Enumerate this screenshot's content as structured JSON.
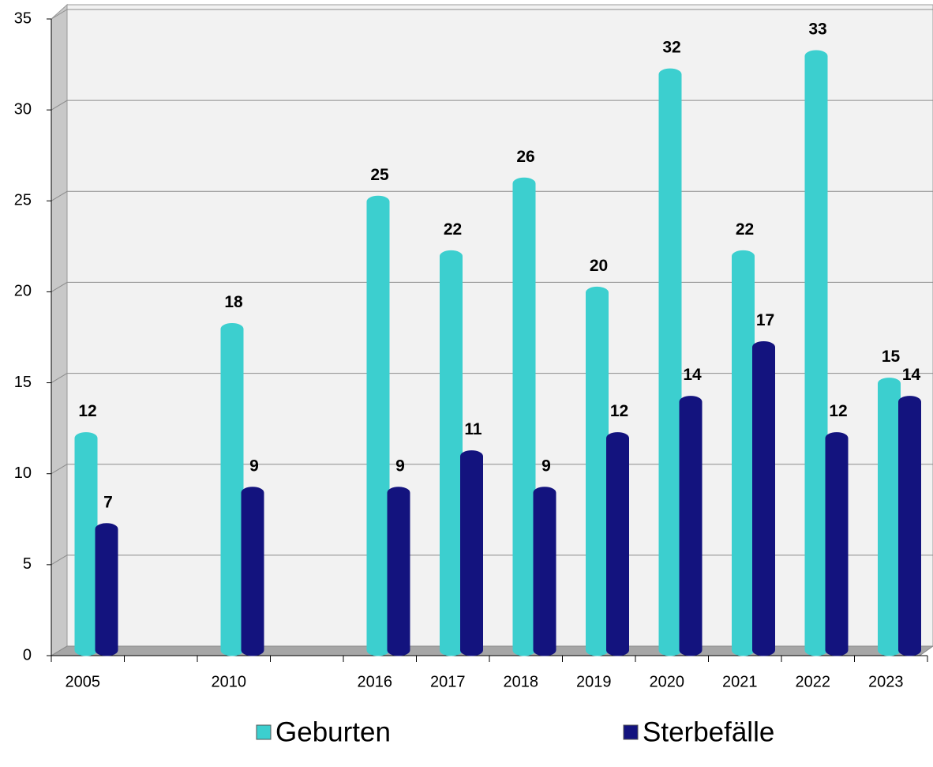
{
  "chart_data": {
    "type": "bar",
    "categories": [
      "2005",
      null,
      "2010",
      null,
      "2016",
      "2017",
      "2018",
      "2019",
      "2020",
      "2021",
      "2022",
      "2023"
    ],
    "series": [
      {
        "name": "Geburten",
        "color": "#3ccfcf",
        "values": [
          12,
          null,
          18,
          null,
          25,
          22,
          26,
          20,
          32,
          22,
          33,
          15
        ]
      },
      {
        "name": "Sterbefälle",
        "color": "#13137e",
        "values": [
          7,
          null,
          9,
          null,
          9,
          11,
          9,
          12,
          14,
          17,
          12,
          14
        ]
      }
    ],
    "ylim": [
      0,
      35
    ],
    "yticks": [
      0,
      5,
      10,
      15,
      20,
      25,
      30,
      35
    ],
    "grid": true,
    "legend": "bottom"
  }
}
